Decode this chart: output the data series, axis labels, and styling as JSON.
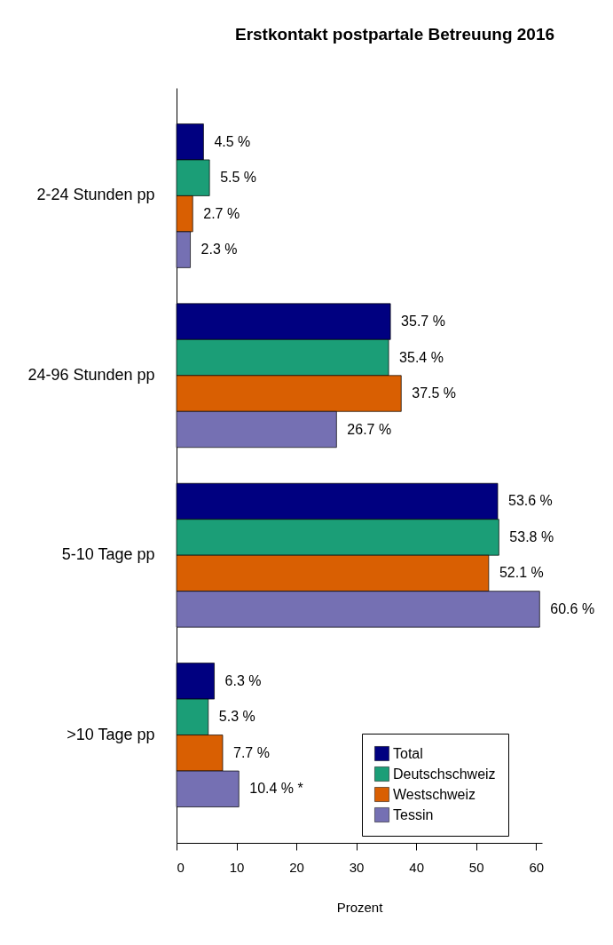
{
  "chart_data": {
    "type": "bar",
    "orientation": "horizontal",
    "title": "Erstkontakt postpartale Betreuung 2016",
    "xlabel": "Prozent",
    "categories": [
      "2-24 Stunden pp",
      "24-96 Stunden pp",
      "5-10 Tage pp",
      ">10 Tage pp"
    ],
    "series": [
      {
        "name": "Total",
        "color": "#000080",
        "values": [
          4.5,
          35.7,
          53.6,
          6.3
        ],
        "value_labels": [
          "4.5 %",
          "35.7 %",
          "53.6 %",
          "6.3 %"
        ]
      },
      {
        "name": "Deutschschweiz",
        "color": "#1b9e77",
        "values": [
          5.5,
          35.4,
          53.8,
          5.3
        ],
        "value_labels": [
          "5.5 %",
          "35.4 %",
          "53.8 %",
          "5.3 %"
        ]
      },
      {
        "name": "Westschweiz",
        "color": "#d95f02",
        "values": [
          2.7,
          37.5,
          52.1,
          7.7
        ],
        "value_labels": [
          "2.7 %",
          "37.5 %",
          "52.1 %",
          "7.7 %"
        ]
      },
      {
        "name": "Tessin",
        "color": "#7570b3",
        "values": [
          2.3,
          26.7,
          60.6,
          10.4
        ],
        "value_labels": [
          "2.3 %",
          "26.7 %",
          "60.6 %",
          "10.4 % *"
        ]
      }
    ],
    "xlim": [
      0,
      61
    ],
    "xticks": [
      0,
      10,
      20,
      30,
      40,
      50,
      60
    ],
    "grid": false,
    "legend": "bottom right"
  }
}
